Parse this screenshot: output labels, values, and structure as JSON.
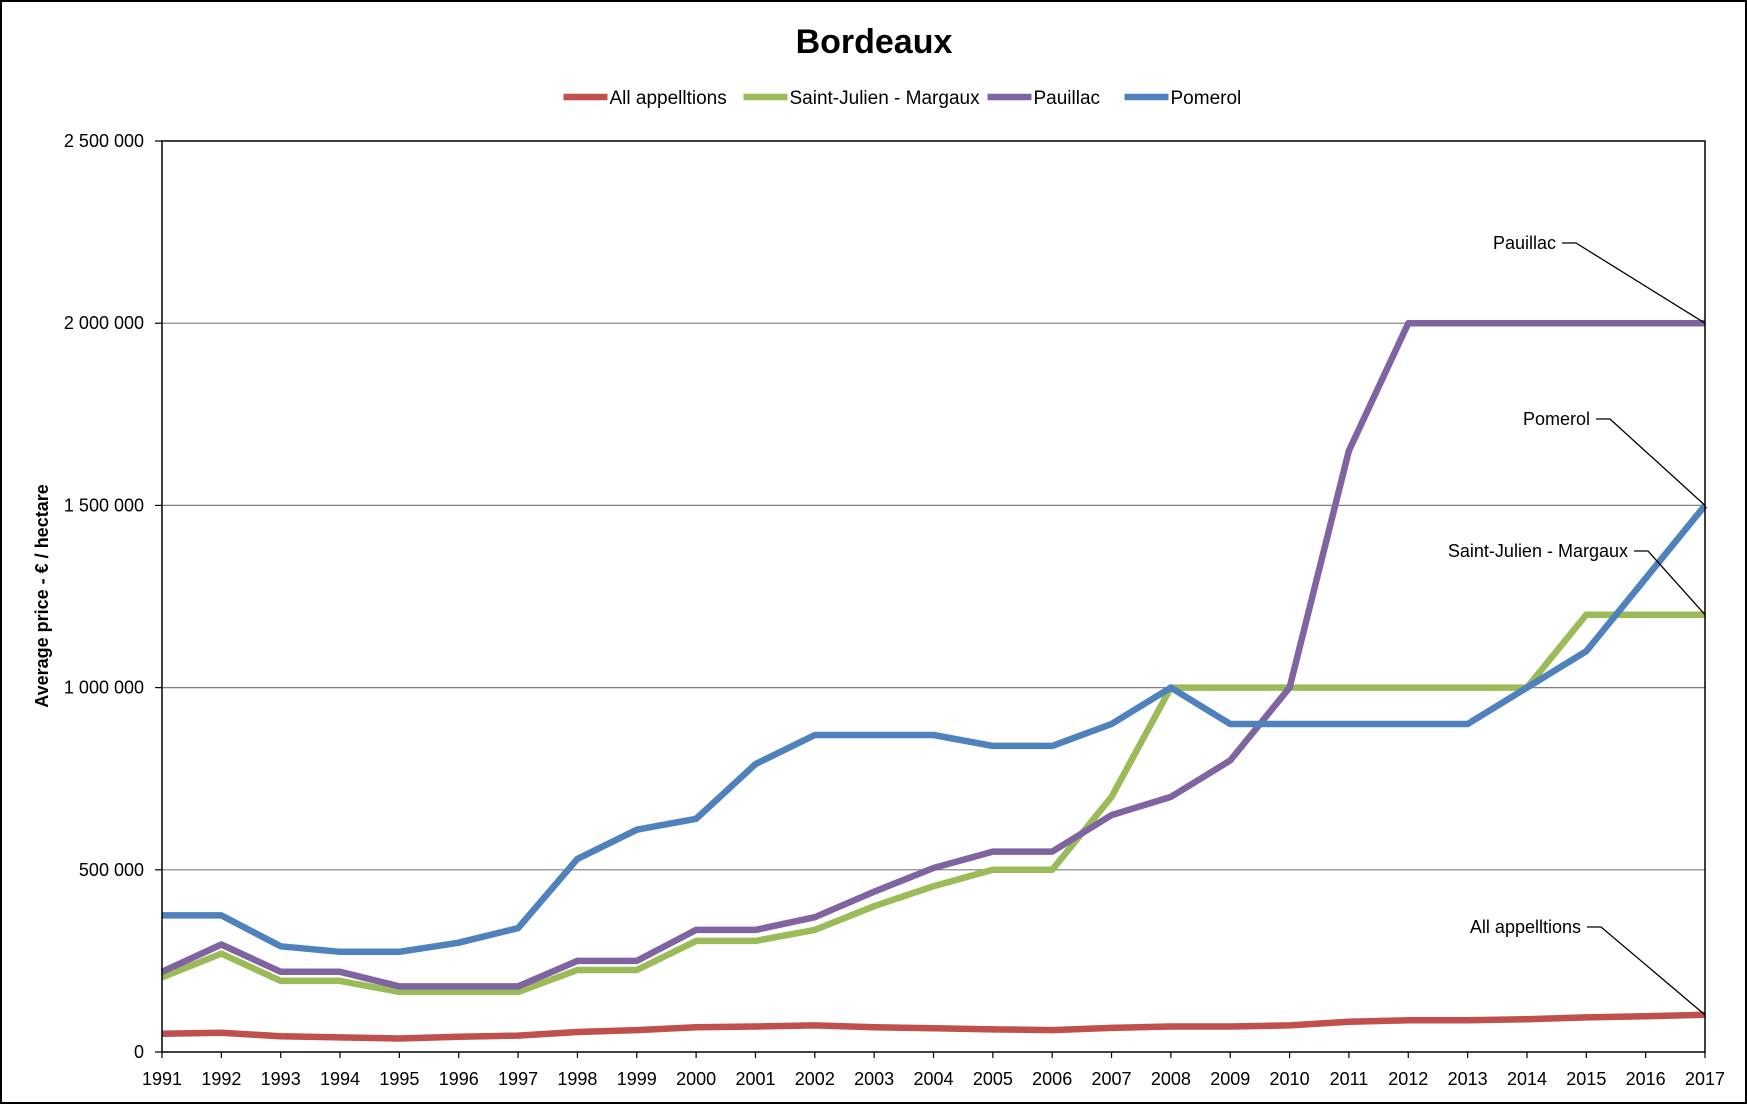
{
  "chart_data": {
    "type": "line",
    "title": "Bordeaux",
    "xlabel": "",
    "ylabel": "Average price - € / hectare",
    "ylim": [
      0,
      2500000
    ],
    "yticks": [
      0,
      500000,
      1000000,
      1500000,
      2000000,
      2500000
    ],
    "ytick_labels": [
      "0",
      "500 000",
      "1 000 000",
      "1 500 000",
      "2 000 000",
      "2 500 000"
    ],
    "grid": true,
    "legend_position": "top",
    "x": [
      "1991",
      "1992",
      "1993",
      "1994",
      "1995",
      "1996",
      "1997",
      "1998",
      "1999",
      "2000",
      "2001",
      "2002",
      "2003",
      "2004",
      "2005",
      "2006",
      "2007",
      "2008",
      "2009",
      "2010",
      "2011",
      "2012",
      "2013",
      "2014",
      "2015",
      "2016",
      "2017"
    ],
    "series": [
      {
        "name": "All appelltions",
        "color": "#c0504d",
        "values": [
          50000,
          53000,
          43000,
          40000,
          37000,
          42000,
          45000,
          55000,
          60000,
          68000,
          70000,
          73000,
          68000,
          65000,
          62000,
          60000,
          66000,
          70000,
          70000,
          73000,
          83000,
          87000,
          87000,
          90000,
          95000,
          98000,
          102000
        ]
      },
      {
        "name": "Saint-Julien - Margaux",
        "color": "#9bbb59",
        "values": [
          205000,
          270000,
          195000,
          195000,
          165000,
          165000,
          165000,
          225000,
          225000,
          305000,
          305000,
          335000,
          400000,
          455000,
          500000,
          500000,
          700000,
          1000000,
          1000000,
          1000000,
          1000000,
          1000000,
          1000000,
          1000000,
          1200000,
          1200000,
          1200000
        ]
      },
      {
        "name": "Pauillac",
        "color": "#8064a2",
        "values": [
          220000,
          295000,
          220000,
          220000,
          180000,
          180000,
          180000,
          250000,
          250000,
          335000,
          335000,
          370000,
          440000,
          505000,
          550000,
          550000,
          650000,
          700000,
          800000,
          1000000,
          1650000,
          2000000,
          2000000,
          2000000,
          2000000,
          2000000,
          2000000
        ]
      },
      {
        "name": "Pomerol",
        "color": "#4f81bd",
        "values": [
          375000,
          375000,
          290000,
          275000,
          275000,
          300000,
          340000,
          530000,
          610000,
          640000,
          790000,
          870000,
          870000,
          870000,
          840000,
          840000,
          900000,
          1000000,
          900000,
          900000,
          900000,
          900000,
          900000,
          1000000,
          1100000,
          1300000,
          1500000
        ]
      }
    ],
    "annotations": [
      {
        "text": "Pauillac",
        "series": "Pauillac"
      },
      {
        "text": "Pomerol",
        "series": "Pomerol"
      },
      {
        "text": "Saint-Julien - Margaux",
        "series": "Saint-Julien - Margaux"
      },
      {
        "text": "All appelltions",
        "series": "All appelltions"
      }
    ]
  }
}
